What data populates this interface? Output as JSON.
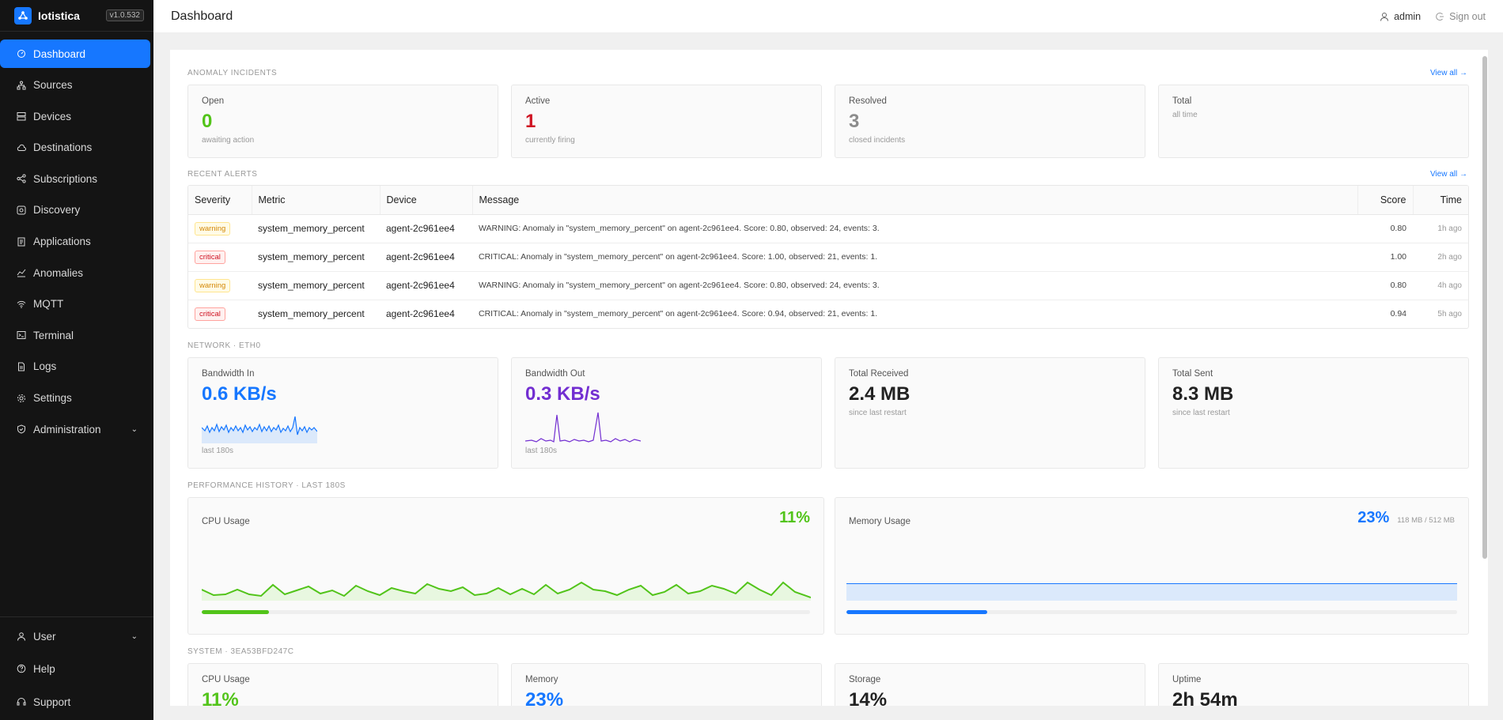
{
  "brand": {
    "name": "Iotistica",
    "version": "v1.0.532"
  },
  "sidebar": {
    "items": [
      {
        "label": "Dashboard",
        "icon": "dashboard-icon"
      },
      {
        "label": "Sources",
        "icon": "sources-icon"
      },
      {
        "label": "Devices",
        "icon": "devices-icon"
      },
      {
        "label": "Destinations",
        "icon": "cloud-icon"
      },
      {
        "label": "Subscriptions",
        "icon": "share-icon"
      },
      {
        "label": "Discovery",
        "icon": "discovery-icon"
      },
      {
        "label": "Applications",
        "icon": "applications-icon"
      },
      {
        "label": "Anomalies",
        "icon": "line-chart-icon"
      },
      {
        "label": "MQTT",
        "icon": "wifi-icon"
      },
      {
        "label": "Terminal",
        "icon": "terminal-icon"
      },
      {
        "label": "Logs",
        "icon": "file-icon"
      },
      {
        "label": "Settings",
        "icon": "gear-icon"
      },
      {
        "label": "Administration",
        "icon": "shield-icon"
      }
    ],
    "bottom": [
      {
        "label": "User"
      },
      {
        "label": "Help"
      },
      {
        "label": "Support"
      }
    ]
  },
  "header": {
    "title": "Dashboard",
    "user": "admin",
    "signout": "Sign out"
  },
  "incidents": {
    "title": "ANOMALY INCIDENTS",
    "view_all": "View all →",
    "cards": [
      {
        "label": "Open",
        "value": "0",
        "sub": "awaiting action",
        "color": "#52c41a"
      },
      {
        "label": "Active",
        "value": "1",
        "sub": "currently firing",
        "color": "#cf1322"
      },
      {
        "label": "Resolved",
        "value": "3",
        "sub": "closed incidents",
        "color": "#8c8c8c"
      },
      {
        "label": "Total",
        "value": "",
        "sub": "all time",
        "color": "#222"
      }
    ]
  },
  "alerts": {
    "title": "RECENT ALERTS",
    "view_all": "View all →",
    "columns": [
      "Severity",
      "Metric",
      "Device",
      "Message",
      "Score",
      "Time"
    ],
    "rows": [
      {
        "severity": "warning",
        "metric": "system_memory_percent",
        "device": "agent-2c961ee4",
        "message": "WARNING: Anomaly in \"system_memory_percent\" on agent-2c961ee4. Score: 0.80, observed: 24, events: 3.",
        "score": "0.80",
        "time": "1h ago"
      },
      {
        "severity": "critical",
        "metric": "system_memory_percent",
        "device": "agent-2c961ee4",
        "message": "CRITICAL: Anomaly in \"system_memory_percent\" on agent-2c961ee4. Score: 1.00, observed: 21, events: 1.",
        "score": "1.00",
        "time": "2h ago"
      },
      {
        "severity": "warning",
        "metric": "system_memory_percent",
        "device": "agent-2c961ee4",
        "message": "WARNING: Anomaly in \"system_memory_percent\" on agent-2c961ee4. Score: 0.80, observed: 24, events: 3.",
        "score": "0.80",
        "time": "4h ago"
      },
      {
        "severity": "critical",
        "metric": "system_memory_percent",
        "device": "agent-2c961ee4",
        "message": "CRITICAL: Anomaly in \"system_memory_percent\" on agent-2c961ee4. Score: 0.94, observed: 21, events: 1.",
        "score": "0.94",
        "time": "5h ago"
      }
    ]
  },
  "network": {
    "title": "NETWORK · ETH0",
    "cards": [
      {
        "label": "Bandwidth In",
        "value": "0.6 KB/s",
        "sub": "last 180s",
        "color": "#1677ff"
      },
      {
        "label": "Bandwidth Out",
        "value": "0.3 KB/s",
        "sub": "last 180s",
        "color": "#722ed1"
      },
      {
        "label": "Total Received",
        "value": "2.4 MB",
        "sub": "since last restart",
        "color": "#222"
      },
      {
        "label": "Total Sent",
        "value": "8.3 MB",
        "sub": "since last restart",
        "color": "#222"
      }
    ]
  },
  "performance": {
    "title": "PERFORMANCE HISTORY · LAST 180S",
    "cpu": {
      "label": "CPU Usage",
      "value": "11%",
      "percent": 11,
      "color": "#52c41a"
    },
    "memory": {
      "label": "Memory Usage",
      "value": "23%",
      "detail": "118 MB / 512 MB",
      "percent": 23,
      "color": "#1677ff"
    }
  },
  "system": {
    "title": "SYSTEM · 3EA53BFD247C",
    "cards": [
      {
        "label": "CPU Usage",
        "value": "11%",
        "color": "#52c41a"
      },
      {
        "label": "Memory",
        "value": "23%",
        "color": "#1677ff"
      },
      {
        "label": "Storage",
        "value": "14%",
        "color": "#222"
      },
      {
        "label": "Uptime",
        "value": "2h 54m",
        "color": "#222"
      }
    ]
  }
}
